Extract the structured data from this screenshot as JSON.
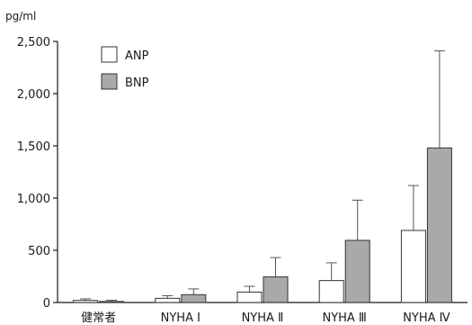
{
  "chart_data": {
    "type": "bar",
    "unit_label": "pg/ml",
    "categories": [
      "健常者",
      "NYHA Ⅰ",
      "NYHA Ⅱ",
      "NYHA Ⅲ",
      "NYHA Ⅳ"
    ],
    "ylim": [
      0,
      2500
    ],
    "yticks": [
      0,
      500,
      1000,
      1500,
      2000,
      2500
    ],
    "ytick_labels": [
      "0",
      "500",
      "1,000",
      "1,500",
      "2,000",
      "2,500"
    ],
    "legend_position": "top-left",
    "grid": false,
    "series": [
      {
        "name": "ANP",
        "color": "#ffffff",
        "values": [
          20,
          40,
          100,
          210,
          690
        ],
        "error": [
          15,
          25,
          55,
          170,
          430
        ]
      },
      {
        "name": "BNP",
        "color": "#a9a9a9",
        "values": [
          10,
          75,
          245,
          595,
          1480
        ],
        "error": [
          12,
          55,
          185,
          385,
          930
        ]
      }
    ]
  }
}
